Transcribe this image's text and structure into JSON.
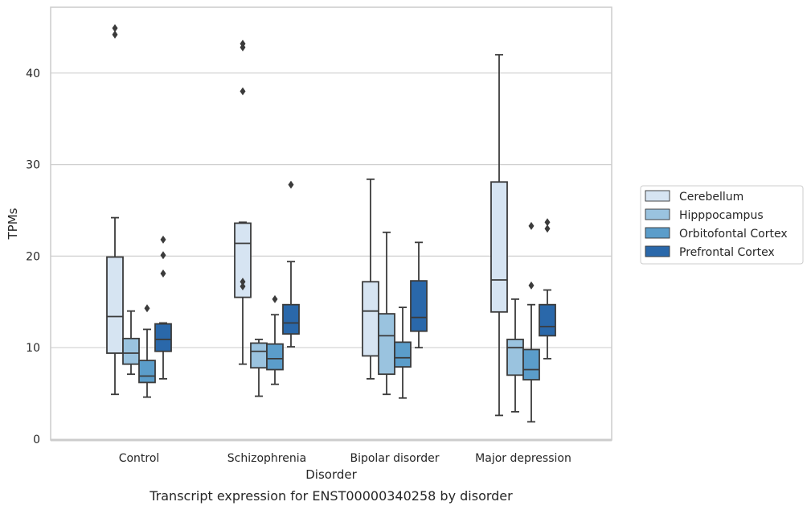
{
  "chart_data": {
    "type": "boxplot",
    "title": "",
    "caption": "Transcript expression for ENST00000340258 by disorder",
    "xlabel": "Disorder",
    "ylabel": "TPMs",
    "ylim": [
      0,
      47.5
    ],
    "yticks": [
      0,
      10,
      20,
      30,
      40
    ],
    "grid": "horizontal",
    "legend_position": "right",
    "categories": [
      "Control",
      "Schizophrenia",
      "Bipolar disorder",
      "Major depression"
    ],
    "series": [
      {
        "name": "Cerebellum",
        "color": "#d6e4f2",
        "boxes": [
          {
            "whislo": 4.9,
            "q1": 9.4,
            "med": 13.4,
            "q3": 19.9,
            "whishi": 24.2,
            "fliers": [
              44.2,
              44.9
            ]
          },
          {
            "whislo": 8.2,
            "q1": 15.5,
            "med": 21.4,
            "q3": 23.6,
            "whishi": 23.7,
            "fliers": [
              16.7,
              17.2,
              38.0,
              42.8,
              43.2
            ]
          },
          {
            "whislo": 6.6,
            "q1": 9.1,
            "med": 14.0,
            "q3": 17.2,
            "whishi": 28.4,
            "fliers": []
          },
          {
            "whislo": 2.6,
            "q1": 13.9,
            "med": 17.4,
            "q3": 28.1,
            "whishi": 42.0,
            "fliers": []
          }
        ]
      },
      {
        "name": "Hipppocampus",
        "color": "#9ac3df",
        "boxes": [
          {
            "whislo": 7.1,
            "q1": 8.2,
            "med": 9.4,
            "q3": 11.0,
            "whishi": 14.0,
            "fliers": []
          },
          {
            "whislo": 4.7,
            "q1": 7.8,
            "med": 9.6,
            "q3": 10.5,
            "whishi": 10.9,
            "fliers": []
          },
          {
            "whislo": 4.9,
            "q1": 7.1,
            "med": 11.3,
            "q3": 13.7,
            "whishi": 22.6,
            "fliers": []
          },
          {
            "whislo": 3.0,
            "q1": 7.0,
            "med": 10.0,
            "q3": 10.9,
            "whishi": 15.3,
            "fliers": []
          }
        ]
      },
      {
        "name": "Orbitofontal Cortex",
        "color": "#5b9dca",
        "boxes": [
          {
            "whislo": 4.6,
            "q1": 6.2,
            "med": 6.9,
            "q3": 8.6,
            "whishi": 12.0,
            "fliers": [
              14.3
            ]
          },
          {
            "whislo": 6.0,
            "q1": 7.6,
            "med": 8.8,
            "q3": 10.4,
            "whishi": 13.6,
            "fliers": [
              15.3
            ]
          },
          {
            "whislo": 4.5,
            "q1": 7.9,
            "med": 8.9,
            "q3": 10.6,
            "whishi": 14.4,
            "fliers": []
          },
          {
            "whislo": 1.9,
            "q1": 6.5,
            "med": 7.6,
            "q3": 9.8,
            "whishi": 14.7,
            "fliers": [
              16.8,
              23.3
            ]
          }
        ]
      },
      {
        "name": "Prefrontal Cortex",
        "color": "#2a68aa",
        "boxes": [
          {
            "whislo": 6.6,
            "q1": 9.6,
            "med": 10.9,
            "q3": 12.6,
            "whishi": 12.7,
            "fliers": [
              18.1,
              20.1,
              21.8
            ]
          },
          {
            "whislo": 10.1,
            "q1": 11.5,
            "med": 12.7,
            "q3": 14.7,
            "whishi": 19.4,
            "fliers": [
              27.8
            ]
          },
          {
            "whislo": 10.0,
            "q1": 11.8,
            "med": 13.3,
            "q3": 17.3,
            "whishi": 21.5,
            "fliers": []
          },
          {
            "whislo": 8.8,
            "q1": 11.3,
            "med": 12.3,
            "q3": 14.7,
            "whishi": 16.3,
            "fliers": [
              23.0,
              23.7
            ]
          }
        ]
      }
    ]
  }
}
